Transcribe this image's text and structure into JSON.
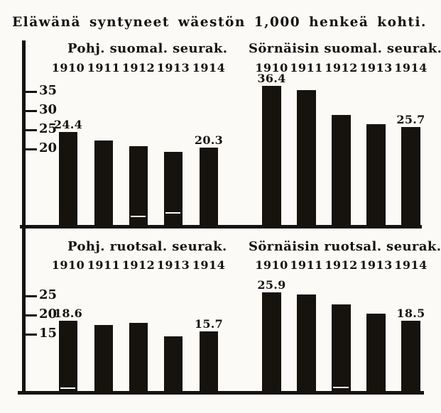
{
  "title": "Eläwänä syntyneet wäestön 1,000 henkeä kohti.",
  "ink_color": "#16130f",
  "paper_color": "#fbfaf6",
  "chart_data": [
    {
      "type": "bar",
      "title": "Pohj. suomal. seurak.",
      "position": "top-left",
      "categories": [
        "1910",
        "1911",
        "1912",
        "1913",
        "1914"
      ],
      "values": [
        24.4,
        22.3,
        20.7,
        19.2,
        20.3
      ],
      "bar_labels": {
        "0": "24.4",
        "4": "20.3"
      },
      "yticks": [
        35,
        30,
        25,
        20
      ],
      "ylim": [
        0,
        40
      ],
      "grid": false,
      "legend": false
    },
    {
      "type": "bar",
      "title": "Sörnäisin suomal. seurak.",
      "position": "top-right",
      "categories": [
        "1910",
        "1911",
        "1912",
        "1913",
        "1914"
      ],
      "values": [
        36.4,
        35.3,
        28.9,
        26.4,
        25.7
      ],
      "bar_labels": {
        "0": "36.4",
        "4": "25.7"
      },
      "yticks": [
        35,
        30,
        25,
        20
      ],
      "ylim": [
        0,
        40
      ],
      "grid": false,
      "legend": false
    },
    {
      "type": "bar",
      "title": "Pohj. ruotsal. seurak.",
      "position": "bottom-left",
      "categories": [
        "1910",
        "1911",
        "1912",
        "1913",
        "1914"
      ],
      "values": [
        18.6,
        17.4,
        18.0,
        14.5,
        15.7
      ],
      "bar_labels": {
        "0": "18.6",
        "4": "15.7"
      },
      "yticks": [
        25,
        20,
        15
      ],
      "ylim": [
        0,
        28
      ],
      "grid": false,
      "legend": false
    },
    {
      "type": "bar",
      "title": "Sörnäisin ruotsal. seurak.",
      "position": "bottom-right",
      "categories": [
        "1910",
        "1911",
        "1912",
        "1913",
        "1914"
      ],
      "values": [
        25.9,
        25.4,
        22.8,
        20.4,
        18.5
      ],
      "bar_labels": {
        "0": "25.9",
        "4": "18.5"
      },
      "yticks": [
        25,
        20,
        15
      ],
      "ylim": [
        0,
        28
      ],
      "grid": false,
      "legend": false
    }
  ]
}
